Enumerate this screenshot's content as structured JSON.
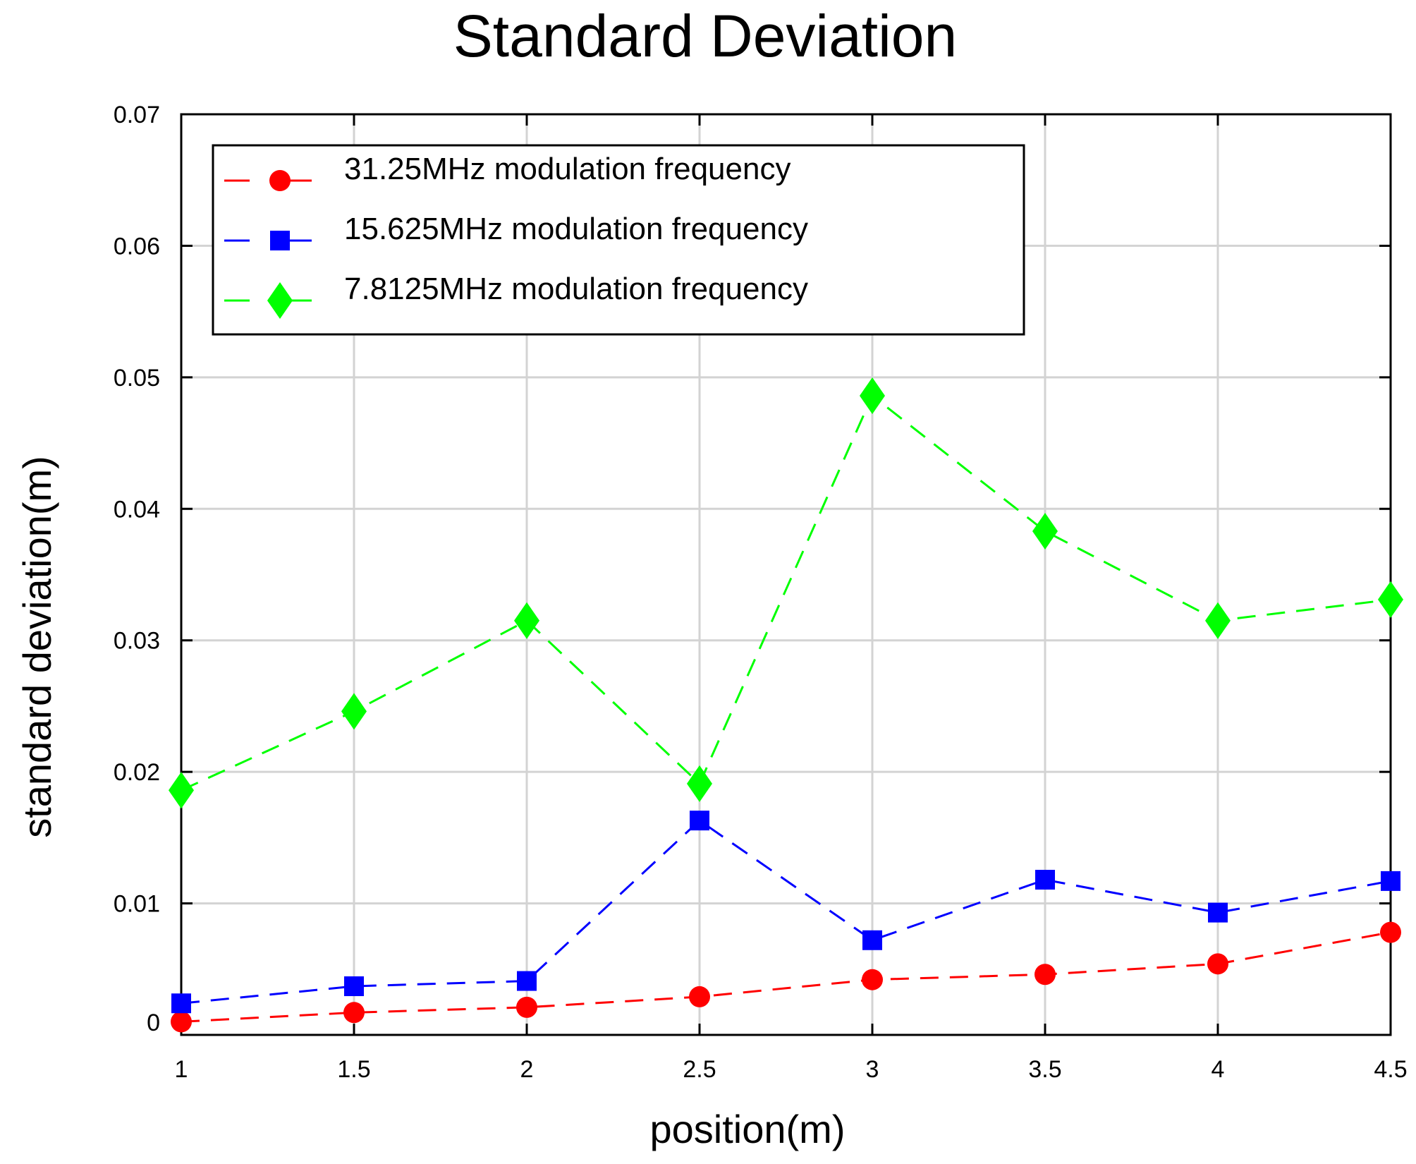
{
  "chart_data": {
    "type": "line",
    "title": "Standard Deviation",
    "xlabel": "position(m)",
    "ylabel": "standard deviation(m)",
    "xlim": [
      1,
      4.5
    ],
    "ylim": [
      0,
      0.07
    ],
    "x_ticks": [
      "1",
      "1.5",
      "2",
      "2.5",
      "3",
      "3.5",
      "4",
      "4.5"
    ],
    "y_ticks": [
      "0",
      "0.01",
      "0.02",
      "0.03",
      "0.04",
      "0.05",
      "0.06",
      "0.07"
    ],
    "grid": true,
    "legend_position": "top-left",
    "x": [
      1,
      1.5,
      2,
      2.5,
      3,
      3.5,
      4,
      4.5
    ],
    "series": [
      {
        "name": "31.25MHz modulation frequency",
        "color": "#ff0000",
        "marker": "circle",
        "values": [
          0.001,
          0.0017,
          0.0021,
          0.0029,
          0.0042,
          0.0046,
          0.0054,
          0.0078
        ]
      },
      {
        "name": "15.625MHz modulation frequency",
        "color": "#0000ff",
        "marker": "square",
        "values": [
          0.0024,
          0.0037,
          0.0041,
          0.0163,
          0.0072,
          0.0118,
          0.0093,
          0.0117
        ]
      },
      {
        "name": "7.8125MHz modulation frequency",
        "color": "#00ff00",
        "marker": "diamond",
        "values": [
          0.0186,
          0.0246,
          0.0315,
          0.0191,
          0.0486,
          0.0383,
          0.0315,
          0.0331
        ]
      }
    ]
  }
}
